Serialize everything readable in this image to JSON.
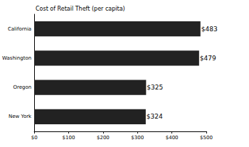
{
  "chart_data": {
    "type": "bar",
    "orientation": "horizontal",
    "title": "Cost of Retail Theft (per capita)",
    "categories": [
      "California",
      "Washington",
      "Oregon",
      "New York"
    ],
    "values": [
      483,
      479,
      325,
      324
    ],
    "value_labels": [
      "$483",
      "$479",
      "$325",
      "$324"
    ],
    "data_labels": true,
    "color": "#222222",
    "xlim": [
      0,
      500
    ],
    "xticks": [
      {
        "value": 0,
        "label": "$0"
      },
      {
        "value": 100,
        "label": "$100"
      },
      {
        "value": 200,
        "label": "$200"
      },
      {
        "value": 300,
        "label": "$300"
      },
      {
        "value": 400,
        "label": "$400"
      },
      {
        "value": 500,
        "label": "$500"
      }
    ],
    "grid": false
  }
}
